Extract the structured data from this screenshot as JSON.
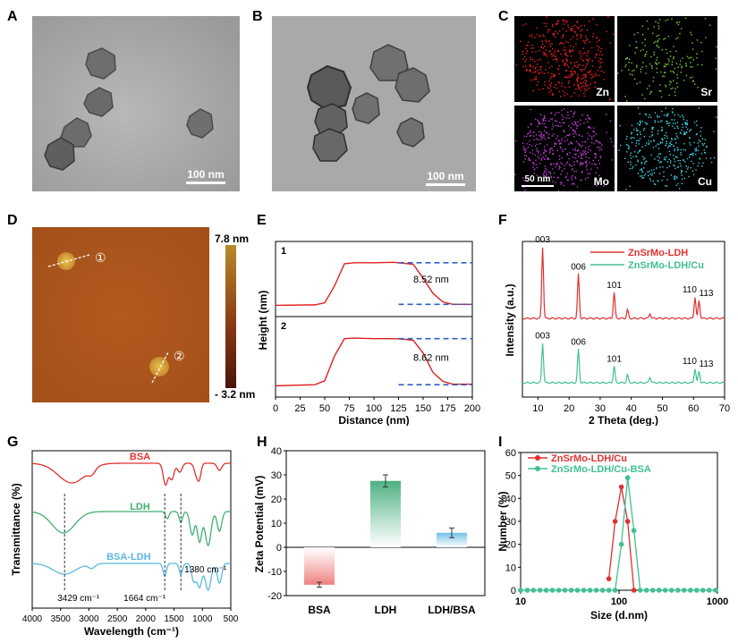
{
  "panels": {
    "A": {
      "label": "A",
      "scale_text": "100 nm"
    },
    "B": {
      "label": "B",
      "scale_text": "100 nm"
    },
    "C": {
      "label": "C",
      "scale_text": "50 nm",
      "maps": [
        "Zn",
        "Sr",
        "Mo",
        "Cu"
      ],
      "colors": {
        "Zn": "#ff2020",
        "Sr": "#7bd13a",
        "Mo": "#c040d8",
        "Cu": "#3fd0e0"
      }
    },
    "D": {
      "label": "D",
      "cb_max": "7.8 nm",
      "cb_min": "- 3.2 nm",
      "marker1": "①",
      "marker2": "②"
    },
    "E": {
      "label": "E"
    },
    "F": {
      "label": "F"
    },
    "G": {
      "label": "G"
    },
    "H": {
      "label": "H"
    },
    "I": {
      "label": "I"
    }
  },
  "chart_data": [
    {
      "id": "E",
      "type": "line",
      "xlabel": "Distance (nm)",
      "ylabel": "Height (nm)",
      "xlim": [
        0,
        200
      ],
      "xticks": [
        0,
        25,
        50,
        75,
        100,
        125,
        150,
        175,
        200
      ],
      "subplots": [
        {
          "name": "1",
          "annotation": "8.52 nm",
          "x": [
            0,
            40,
            50,
            60,
            70,
            80,
            100,
            120,
            130,
            140,
            150,
            160,
            170,
            180,
            200
          ],
          "y": [
            0.1,
            0.2,
            0.6,
            4.0,
            8.4,
            8.6,
            8.6,
            8.7,
            8.5,
            8.3,
            5.5,
            2.5,
            0.8,
            0.3,
            0.3
          ]
        },
        {
          "name": "2",
          "annotation": "8.62 nm",
          "x": [
            0,
            40,
            50,
            60,
            70,
            80,
            100,
            120,
            130,
            140,
            150,
            160,
            170,
            180,
            200
          ],
          "y": [
            0.1,
            0.3,
            1.0,
            5.5,
            8.6,
            8.7,
            8.6,
            8.6,
            8.5,
            8.3,
            6.0,
            2.5,
            0.9,
            0.4,
            0.4
          ]
        }
      ]
    },
    {
      "id": "F",
      "type": "line",
      "xlabel": "2 Theta (deg.)",
      "ylabel": "Intensity (a.u.)",
      "xlim": [
        5,
        70
      ],
      "xticks": [
        10,
        20,
        30,
        40,
        50,
        60,
        70
      ],
      "series": [
        {
          "name": "ZnSrMo-LDH",
          "color": "#e03030",
          "peaks": [
            {
              "x": 11.5,
              "h": 1.0,
              "label": "003"
            },
            {
              "x": 23.0,
              "h": 0.62,
              "label": "006"
            },
            {
              "x": 34.5,
              "h": 0.36,
              "label": "101"
            },
            {
              "x": 38.8,
              "h": 0.12,
              "label": ""
            },
            {
              "x": 46.0,
              "h": 0.07,
              "label": ""
            },
            {
              "x": 60.5,
              "h": 0.3,
              "label": "110"
            },
            {
              "x": 61.8,
              "h": 0.25,
              "label": "113"
            }
          ]
        },
        {
          "name": "ZnSrMo-LDH/Cu",
          "color": "#40c090",
          "peaks": [
            {
              "x": 11.5,
              "h": 0.62,
              "label": "003"
            },
            {
              "x": 23.0,
              "h": 0.52,
              "label": "006"
            },
            {
              "x": 34.5,
              "h": 0.26,
              "label": "101"
            },
            {
              "x": 38.8,
              "h": 0.12,
              "label": ""
            },
            {
              "x": 46.0,
              "h": 0.09,
              "label": ""
            },
            {
              "x": 60.5,
              "h": 0.22,
              "label": "110"
            },
            {
              "x": 61.8,
              "h": 0.18,
              "label": "113"
            }
          ]
        }
      ]
    },
    {
      "id": "G",
      "type": "line",
      "xlabel": "Wavelength (cm⁻¹)",
      "ylabel": "Transmittance (%)",
      "xlim": [
        4000,
        500
      ],
      "xticks": [
        4000,
        3500,
        3000,
        2500,
        2000,
        1500,
        1000,
        500
      ],
      "series": [
        {
          "name": "BSA",
          "color": "#e03030"
        },
        {
          "name": "LDH",
          "color": "#40b070"
        },
        {
          "name": "BSA-LDH",
          "color": "#5ab8e0"
        }
      ],
      "annotations": [
        "3429 cm⁻¹",
        "1664 cm⁻¹",
        "1380 cm⁻¹"
      ],
      "ref_lines": [
        3429,
        1664,
        1380
      ]
    },
    {
      "id": "H",
      "type": "bar",
      "ylabel": "Zeta Potential (mV)",
      "ylim": [
        -20,
        40
      ],
      "yticks": [
        -20,
        -10,
        0,
        10,
        20,
        30,
        40
      ],
      "categories": [
        "BSA",
        "LDH",
        "LDH/BSA"
      ],
      "values": [
        -15.5,
        27.5,
        6.0
      ],
      "errors": [
        1.0,
        2.5,
        2.0
      ],
      "colors": [
        "#f08080",
        "#4cb080",
        "#70c0e8"
      ]
    },
    {
      "id": "I",
      "type": "line",
      "xlabel": "Size (d.nm)",
      "ylabel": "Number (%)",
      "xscale": "log",
      "xlim": [
        10,
        1000
      ],
      "ylim": [
        0,
        60
      ],
      "yticks": [
        0,
        10,
        20,
        30,
        40,
        50,
        60
      ],
      "xtick_labels": [
        "10",
        "100",
        "1000"
      ],
      "series": [
        {
          "name": "ZnSrMo-LDH/Cu",
          "color": "#e03030",
          "x": [
            78.8,
            91.3,
            105.7,
            122.4,
            141.8
          ],
          "y": [
            5,
            30,
            45,
            30,
            0
          ]
        },
        {
          "name": "ZnSrMo-LDH/Cu-BSA",
          "color": "#40c090",
          "x": [
            10,
            11.7,
            13.5,
            15.7,
            18.2,
            21.0,
            24.4,
            28.2,
            32.7,
            37.8,
            43.8,
            50.7,
            58.8,
            68.1,
            78.8,
            91.3,
            105.7,
            122.4,
            141.8,
            164.2,
            190.1,
            220.2,
            255.0,
            295.3,
            342.0,
            396.1,
            458.7,
            531.2,
            615.1,
            712.4,
            825.0,
            955.4
          ],
          "y": [
            0,
            0,
            0,
            0,
            0,
            0,
            0,
            0,
            0,
            0,
            0,
            0,
            0,
            0,
            0,
            0,
            20,
            49,
            26,
            0,
            0,
            0,
            0,
            0,
            0,
            0,
            0,
            0,
            0,
            0,
            0,
            0
          ]
        }
      ]
    }
  ]
}
